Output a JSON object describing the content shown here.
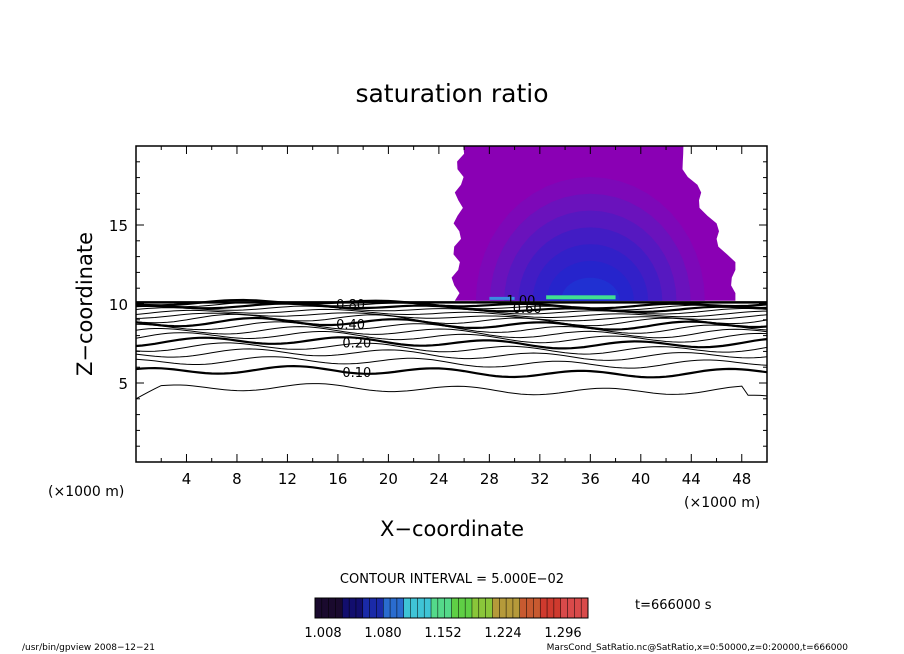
{
  "chart_data": {
    "type": "contour",
    "title": "saturation ratio",
    "xlabel": "X−coordinate",
    "ylabel": "Z−coordinate",
    "x_unit_left": "(×1000 m)",
    "x_unit_right": "(×1000 m)",
    "xlim": [
      0,
      50
    ],
    "ylim": [
      0,
      20
    ],
    "x_ticks": [
      4,
      8,
      12,
      16,
      20,
      24,
      28,
      32,
      36,
      40,
      44,
      48
    ],
    "y_ticks": [
      5,
      10,
      15
    ],
    "contour_lines": [
      {
        "z": 4.6,
        "bold": false
      },
      {
        "z": 5.7,
        "bold": true,
        "label": "0.10",
        "label_x": 17.5
      },
      {
        "z": 6.3,
        "bold": false
      },
      {
        "z": 6.8,
        "bold": false
      },
      {
        "z": 7.2,
        "bold": false
      },
      {
        "z": 7.55,
        "bold": true,
        "label": "0.20",
        "label_x": 17.5
      },
      {
        "z": 7.9,
        "bold": false
      },
      {
        "z": 8.2,
        "bold": false
      },
      {
        "z": 8.5,
        "bold": false
      },
      {
        "z": 8.75,
        "bold": true,
        "label": "0.40",
        "label_x": 17
      },
      {
        "z": 9.0,
        "bold": false
      },
      {
        "z": 9.2,
        "bold": false
      },
      {
        "z": 9.4,
        "bold": false
      },
      {
        "z": 9.6,
        "bold": false
      },
      {
        "z": 9.75,
        "bold": true,
        "label": "0.60",
        "label_x": 31
      },
      {
        "z": 9.88,
        "bold": false
      },
      {
        "z": 10.0,
        "bold": true,
        "label": "0.80",
        "label_x": 17
      }
    ],
    "extra_labels": [
      {
        "text": "1.00",
        "x": 30.5,
        "z": 10.25
      }
    ],
    "supersaturated_region": {
      "x_range": [
        25.5,
        47.5
      ],
      "z_range": [
        10.2,
        20
      ],
      "min_value": 1.008,
      "max_value": 1.296
    },
    "contour_interval": "CONTOUR INTERVAL = 5.000E−02",
    "time_label": "t=666000 s",
    "colorbar": {
      "ticks": [
        "1.008",
        "1.080",
        "1.152",
        "1.224",
        "1.296"
      ],
      "colors": [
        "#1a0a2e",
        "#120e6e",
        "#1a2aa8",
        "#2a6ccf",
        "#3fc4d6",
        "#54d98a",
        "#5fcf45",
        "#8ac63a",
        "#b59a3a",
        "#c85a30",
        "#cf3a2e",
        "#d94a4a"
      ]
    },
    "fill_colors": [
      "#8a00b4",
      "#7d08b8",
      "#6a12bc",
      "#5618c0",
      "#421cc4",
      "#3220c8",
      "#2624cc",
      "#2030d2"
    ]
  },
  "footer": {
    "left": "/usr/bin/gpview   2008−12−21",
    "right": "MarsCond_SatRatio.nc@SatRatio,x=0:50000,z=0:20000,t=666000"
  }
}
